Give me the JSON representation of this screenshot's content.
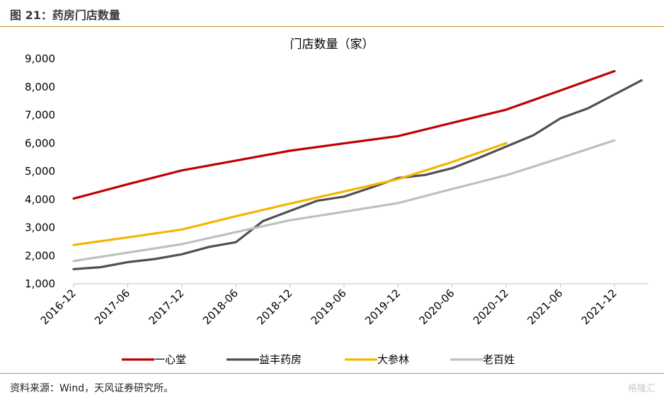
{
  "figure": {
    "title": "图 21：药房门店数量",
    "source": "资料来源：Wind，天风证券研究所。",
    "watermark": "格隆汇"
  },
  "chart_data": {
    "type": "line",
    "title": "门店数量（家）",
    "xlabel": "",
    "ylabel": "",
    "ylim": [
      1000,
      9000
    ],
    "y_ticks": [
      "1,000",
      "2,000",
      "3,000",
      "4,000",
      "5,000",
      "6,000",
      "7,000",
      "8,000",
      "9,000"
    ],
    "x_ticks": [
      "2016-12",
      "2017-06",
      "2017-12",
      "2018-06",
      "2018-12",
      "2019-06",
      "2019-12",
      "2020-06",
      "2020-12",
      "2021-06",
      "2021-12"
    ],
    "x_unit": "quarter index (0 = 2016-12, each step = 3 months)",
    "grid": false,
    "legend_position": "bottom",
    "series": [
      {
        "name": "一心堂",
        "color": "#c00000",
        "x": [
          0,
          2,
          4,
          6,
          8,
          10,
          12,
          14,
          16,
          18,
          20
        ],
        "values": [
          4030,
          4540,
          5030,
          5380,
          5730,
          5990,
          6250,
          6720,
          7190,
          7870,
          8560
        ]
      },
      {
        "name": "益丰药房",
        "color": "#505050",
        "x": [
          0,
          1,
          2,
          3,
          4,
          5,
          6,
          7,
          8,
          9,
          10,
          11,
          12,
          13,
          14,
          15,
          16,
          17,
          18,
          19,
          20,
          21
        ],
        "values": [
          1520,
          1590,
          1770,
          1880,
          2050,
          2310,
          2480,
          3230,
          3590,
          3950,
          4100,
          4420,
          4760,
          4870,
          5110,
          5480,
          5880,
          6280,
          6880,
          7230,
          7730,
          8230
        ]
      },
      {
        "name": "大参林",
        "color": "#f5b400",
        "x": [
          0,
          2,
          4,
          6,
          8,
          10,
          12,
          14,
          16
        ],
        "values": [
          2380,
          2650,
          2930,
          3400,
          3850,
          4280,
          4720,
          5330,
          6000
        ]
      },
      {
        "name": "老百姓",
        "color": "#bfbfbf",
        "x": [
          0,
          2,
          4,
          6,
          8,
          10,
          12,
          14,
          16,
          18,
          20
        ],
        "values": [
          1810,
          2110,
          2410,
          2840,
          3260,
          3560,
          3870,
          4370,
          4860,
          5470,
          6100
        ]
      }
    ]
  }
}
